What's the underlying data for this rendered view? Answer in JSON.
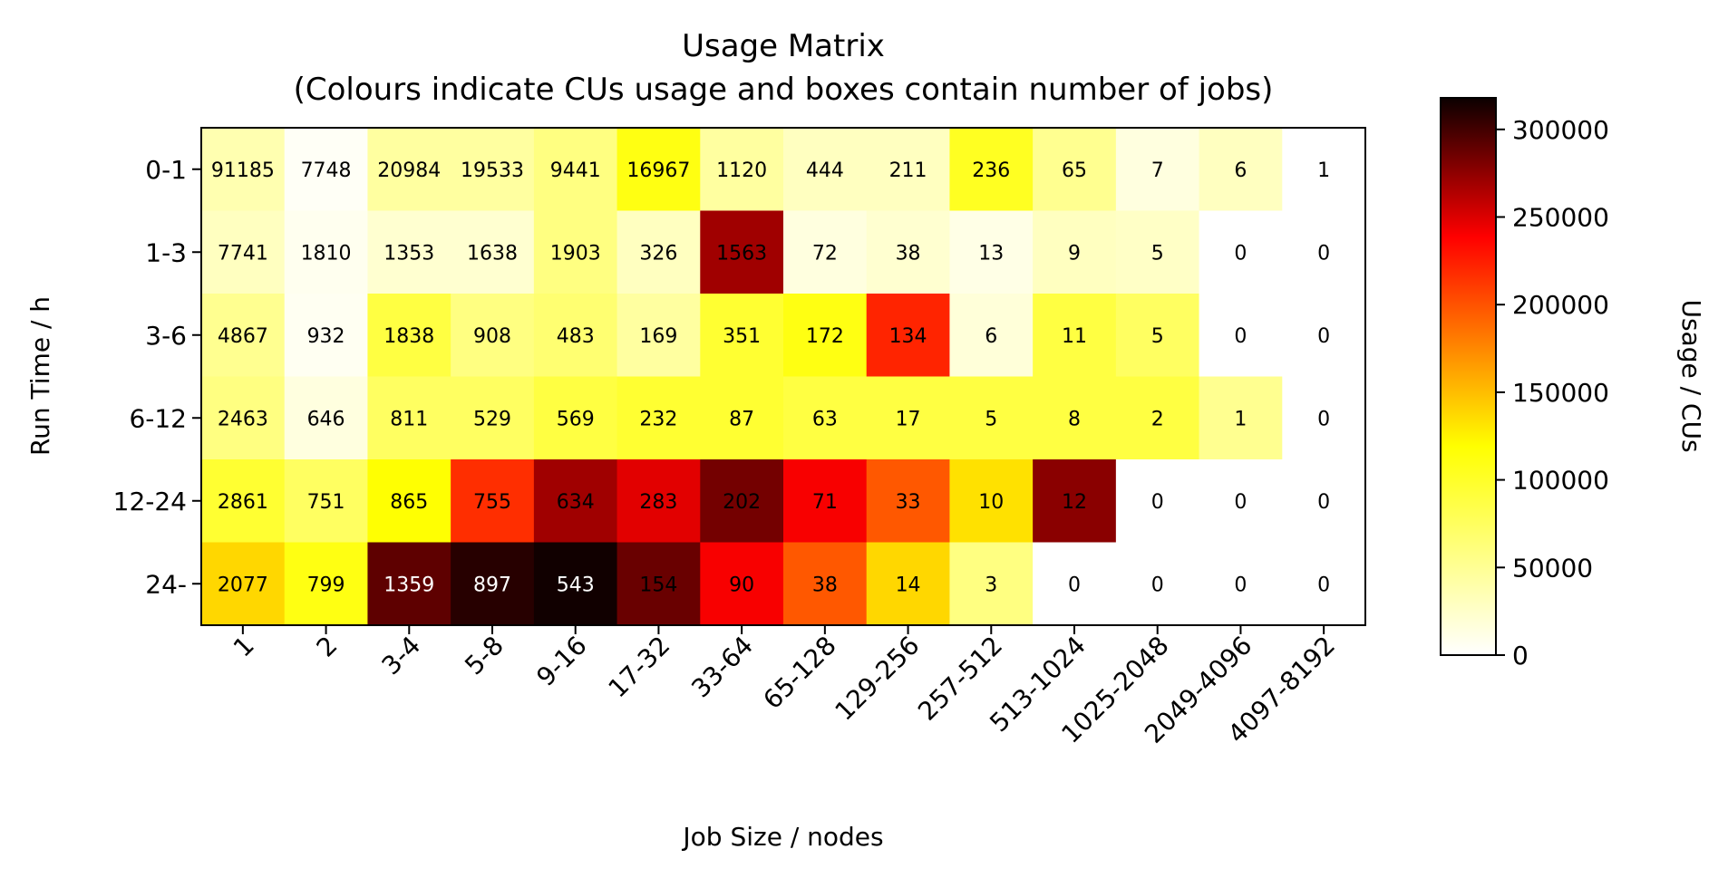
{
  "chart_data": {
    "type": "heatmap",
    "title_lines": [
      "Usage Matrix",
      "(Colours indicate CUs usage and boxes contain number of jobs)"
    ],
    "xlabel": "Job Size / nodes",
    "ylabel": "Run Time / h",
    "colorbar_label": "Usage / CUs",
    "x_categories": [
      "1",
      "2",
      "3-4",
      "5-8",
      "9-16",
      "17-32",
      "33-64",
      "65-128",
      "129-256",
      "257-512",
      "513-1024",
      "1025-2048",
      "2049-4096",
      "4097-8192"
    ],
    "y_categories": [
      "0-1",
      "1-3",
      "3-6",
      "6-12",
      "12-24",
      "24-"
    ],
    "jobs": [
      [
        "91185",
        "7748",
        "20984",
        "19533",
        "9441",
        "16967",
        "1120",
        "444",
        "211",
        "236",
        "65",
        "7",
        "6",
        "1"
      ],
      [
        "7741",
        "1810",
        "1353",
        "1638",
        "1903",
        "326",
        "1563",
        "72",
        "38",
        "13",
        "9",
        "5",
        "0",
        "0"
      ],
      [
        "4867",
        "932",
        "1838",
        "908",
        "483",
        "169",
        "351",
        "172",
        "134",
        "6",
        "11",
        "5",
        "0",
        "0"
      ],
      [
        "2463",
        "646",
        "811",
        "529",
        "569",
        "232",
        "87",
        "63",
        "17",
        "5",
        "8",
        "2",
        "1",
        "0"
      ],
      [
        "2861",
        "751",
        "865",
        "755",
        "634",
        "283",
        "202",
        "71",
        "33",
        "10",
        "12",
        "0",
        "0",
        "0"
      ],
      [
        "2077",
        "799",
        "1359",
        "897",
        "543",
        "154",
        "90",
        "38",
        "14",
        "3",
        "0",
        "0",
        "0",
        "0"
      ]
    ],
    "usage": [
      [
        25000,
        3000,
        30000,
        30000,
        40000,
        75000,
        30000,
        20000,
        20000,
        70000,
        35000,
        10000,
        20000,
        0
      ],
      [
        20000,
        5000,
        15000,
        15000,
        40000,
        20000,
        250000,
        10000,
        15000,
        8000,
        20000,
        18000,
        0,
        0
      ],
      [
        35000,
        4000,
        60000,
        40000,
        45000,
        30000,
        65000,
        75000,
        185000,
        12000,
        60000,
        50000,
        0,
        0
      ],
      [
        40000,
        10000,
        50000,
        50000,
        60000,
        65000,
        65000,
        60000,
        60000,
        60000,
        60000,
        60000,
        35000,
        0
      ],
      [
        65000,
        50000,
        80000,
        180000,
        250000,
        220000,
        270000,
        210000,
        160000,
        95000,
        260000,
        0,
        0,
        0
      ],
      [
        100000,
        75000,
        280000,
        305000,
        315000,
        275000,
        210000,
        160000,
        100000,
        40000,
        0,
        0,
        0,
        0
      ]
    ],
    "colorbar_range": [
      0,
      318000
    ],
    "colorbar_ticks": [
      0,
      50000,
      100000,
      150000,
      200000,
      250000,
      300000
    ],
    "colormap": "hot_r"
  }
}
